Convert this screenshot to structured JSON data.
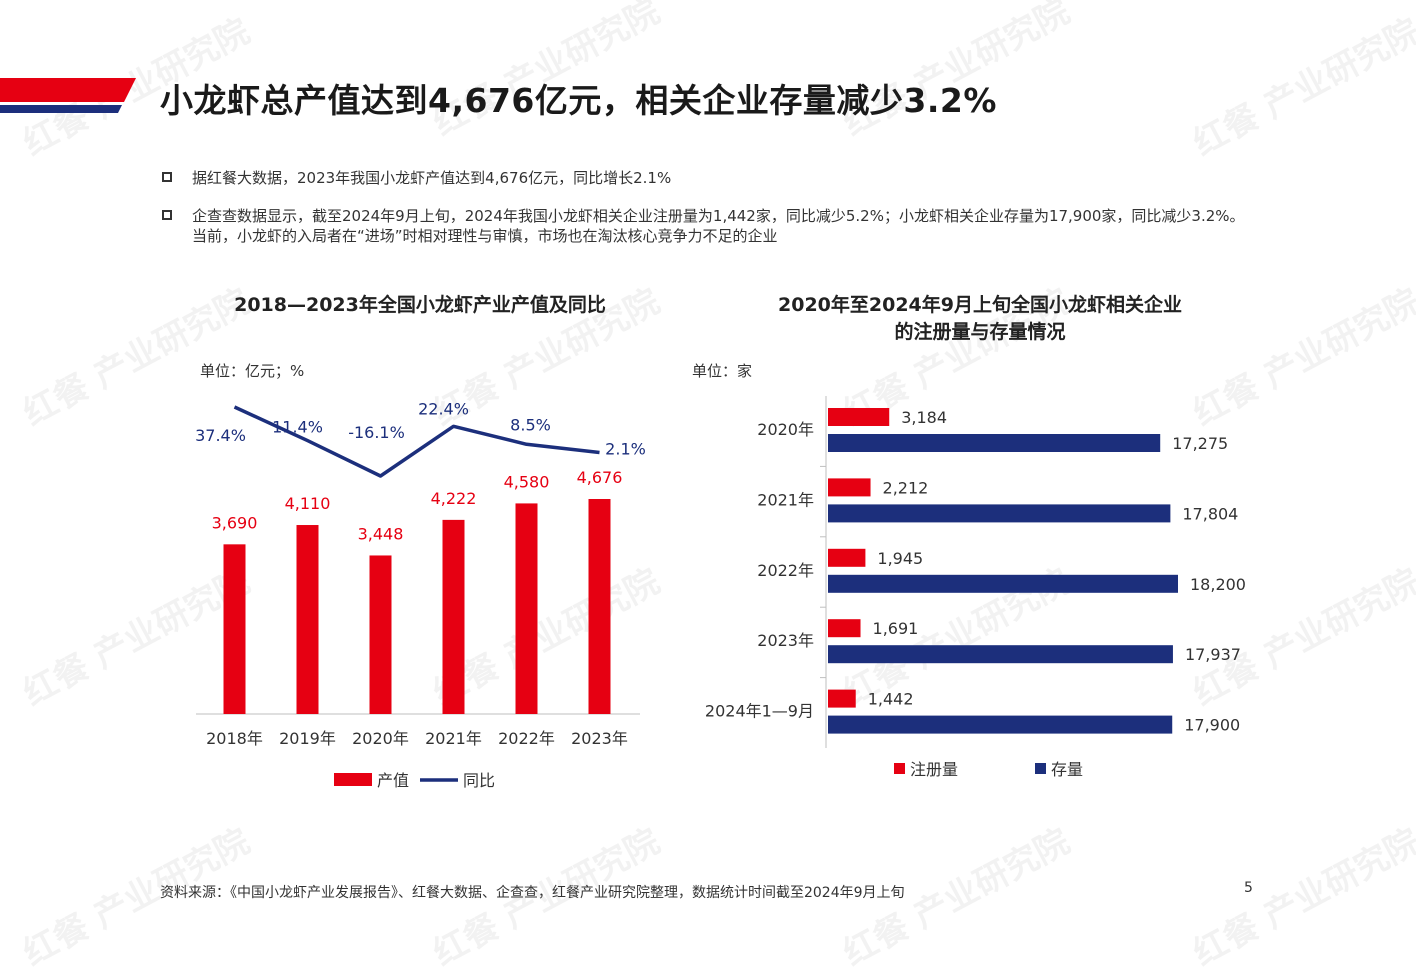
{
  "page": {
    "title": "小龙虾总产值达到4,676亿元，相关企业存量减少3.2%",
    "bullets": [
      "据红餐大数据，2023年我国小龙虾产值达到4,676亿元，同比增长2.1%",
      "企查查数据显示，截至2024年9月上旬，2024年我国小龙虾相关企业注册量为1,442家，同比减少5.2%；小龙虾相关企业存量为17,900家，同比减少3.2%。当前，小龙虾的入局者在“进场”时相对理性与审慎，市场也在淘汰核心竞争力不足的企业"
    ],
    "source": "资料来源：《中国小龙虾产业发展报告》、红餐大数据、企查查，红餐产业研究院整理，数据统计时间截至2024年9月上旬",
    "page_number": "5",
    "watermark_text": "红餐 产业研究院",
    "colors": {
      "red": "#e60012",
      "navy": "#1c2f7c",
      "text": "#333333"
    }
  },
  "chart_data": [
    {
      "type": "bar",
      "title": "2018—2023年全国小龙虾产业产值及同比",
      "unit": "单位：亿元；%",
      "categories": [
        "2018年",
        "2019年",
        "2020年",
        "2021年",
        "2022年",
        "2023年"
      ],
      "series": [
        {
          "name": "产值",
          "type": "bar",
          "color": "#e60012",
          "values": [
            3690,
            4110,
            3448,
            4222,
            4580,
            4676
          ],
          "labels": [
            "3,690",
            "4,110",
            "3,448",
            "4,222",
            "4,580",
            "4,676"
          ]
        },
        {
          "name": "同比",
          "type": "line",
          "color": "#1c2f7c",
          "values": [
            37.4,
            11.4,
            -16.1,
            22.4,
            8.5,
            2.1
          ],
          "labels": [
            "37.4%",
            "11.4%",
            "-16.1%",
            "22.4%",
            "8.5%",
            "2.1%"
          ]
        }
      ],
      "legend": "bottom"
    },
    {
      "type": "bar",
      "orientation": "horizontal",
      "title": "2020年至2024年9月上旬全国小龙虾相关企业的注册量与存量情况",
      "title_lines": [
        "2020年至2024年9月上旬全国小龙虾相关企业",
        "的注册量与存量情况"
      ],
      "unit": "单位：家",
      "categories": [
        "2020年",
        "2021年",
        "2022年",
        "2023年",
        "2024年1—9月"
      ],
      "series": [
        {
          "name": "注册量",
          "color": "#e60012",
          "values": [
            3184,
            2212,
            1945,
            1691,
            1442
          ],
          "labels": [
            "3,184",
            "2,212",
            "1,945",
            "1,691",
            "1,442"
          ]
        },
        {
          "name": "存量",
          "color": "#1c2f7c",
          "values": [
            17275,
            17804,
            18200,
            17937,
            17900
          ],
          "labels": [
            "17,275",
            "17,804",
            "18,200",
            "17,937",
            "17,900"
          ]
        }
      ],
      "legend": "bottom"
    }
  ]
}
